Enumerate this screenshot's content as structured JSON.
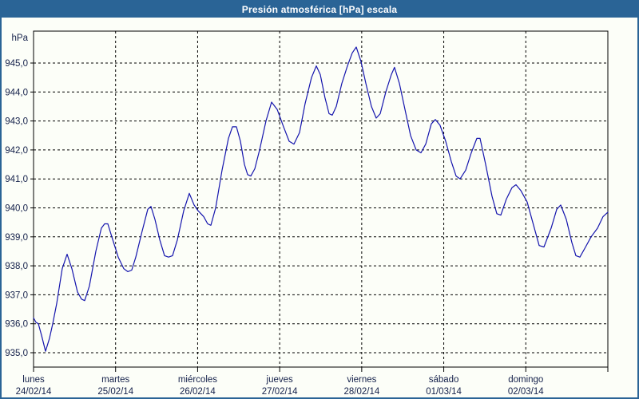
{
  "window": {
    "title": "Presión atmosférica [hPa] escala"
  },
  "colors": {
    "accent": "#2a6496",
    "title_text": "#ffffff",
    "background": "#fcfef8",
    "grid": "#000000",
    "axis": "#000000",
    "label_text": "#14204a",
    "line": "#1515ad"
  },
  "chart_data": {
    "type": "line",
    "title": "Presión atmosférica [hPa] escala",
    "unit_label": "hPa",
    "xlabel": "",
    "ylabel": "hPa",
    "ylim": [
      934.5,
      946.1
    ],
    "xlim_days": [
      0,
      7
    ],
    "grid": "dashed",
    "legend_position": "none",
    "y_ticks": [
      {
        "v": 945,
        "label": "945,0"
      },
      {
        "v": 944,
        "label": "944,0"
      },
      {
        "v": 943,
        "label": "943,0"
      },
      {
        "v": 942,
        "label": "942,0"
      },
      {
        "v": 941,
        "label": "941,0"
      },
      {
        "v": 940,
        "label": "940,0"
      },
      {
        "v": 939,
        "label": "939,0"
      },
      {
        "v": 938,
        "label": "938,0"
      },
      {
        "v": 937,
        "label": "937,0"
      },
      {
        "v": 936,
        "label": "936,0"
      },
      {
        "v": 935,
        "label": "935,0"
      }
    ],
    "x_ticks": [
      {
        "day": "lunes",
        "date": "24/02/14"
      },
      {
        "day": "martes",
        "date": "25/02/14"
      },
      {
        "day": "miércoles",
        "date": "26/02/14"
      },
      {
        "day": "jueves",
        "date": "27/02/14"
      },
      {
        "day": "viernes",
        "date": "28/02/14"
      },
      {
        "day": "sábado",
        "date": "01/03/14"
      },
      {
        "day": "domingo",
        "date": "02/03/14"
      }
    ],
    "series": [
      {
        "name": "Presión atmosférica",
        "color": "#1515ad",
        "points": [
          [
            0,
            936.2
          ],
          [
            0.029,
            936.05
          ],
          [
            0.058,
            936.0
          ],
          [
            0.097,
            935.6
          ],
          [
            0.146,
            935.05
          ],
          [
            0.195,
            935.5
          ],
          [
            0.234,
            936.0
          ],
          [
            0.282,
            936.7
          ],
          [
            0.35,
            937.9
          ],
          [
            0.409,
            938.4
          ],
          [
            0.467,
            937.9
          ],
          [
            0.535,
            937.1
          ],
          [
            0.584,
            936.85
          ],
          [
            0.623,
            936.8
          ],
          [
            0.681,
            937.3
          ],
          [
            0.759,
            938.5
          ],
          [
            0.827,
            939.3
          ],
          [
            0.866,
            939.45
          ],
          [
            0.905,
            939.45
          ],
          [
            0.954,
            939.0
          ],
          [
            1.032,
            938.3
          ],
          [
            1.1,
            937.9
          ],
          [
            1.149,
            937.8
          ],
          [
            1.197,
            937.85
          ],
          [
            1.246,
            938.3
          ],
          [
            1.324,
            939.2
          ],
          [
            1.392,
            939.95
          ],
          [
            1.431,
            940.05
          ],
          [
            1.48,
            939.6
          ],
          [
            1.538,
            938.9
          ],
          [
            1.597,
            938.35
          ],
          [
            1.645,
            938.3
          ],
          [
            1.694,
            938.35
          ],
          [
            1.753,
            938.9
          ],
          [
            1.83,
            939.9
          ],
          [
            1.898,
            940.5
          ],
          [
            1.957,
            940.1
          ],
          [
            2.006,
            939.9
          ],
          [
            2.074,
            939.7
          ],
          [
            2.122,
            939.45
          ],
          [
            2.161,
            939.4
          ],
          [
            2.22,
            940.0
          ],
          [
            2.298,
            941.3
          ],
          [
            2.376,
            942.4
          ],
          [
            2.424,
            942.8
          ],
          [
            2.473,
            942.8
          ],
          [
            2.522,
            942.3
          ],
          [
            2.57,
            941.5
          ],
          [
            2.609,
            941.15
          ],
          [
            2.648,
            941.1
          ],
          [
            2.697,
            941.35
          ],
          [
            2.755,
            942.0
          ],
          [
            2.833,
            943.0
          ],
          [
            2.901,
            943.65
          ],
          [
            2.969,
            943.4
          ],
          [
            3.047,
            942.8
          ],
          [
            3.115,
            942.3
          ],
          [
            3.174,
            942.2
          ],
          [
            3.242,
            942.6
          ],
          [
            3.31,
            943.6
          ],
          [
            3.388,
            944.5
          ],
          [
            3.446,
            944.9
          ],
          [
            3.495,
            944.6
          ],
          [
            3.553,
            943.8
          ],
          [
            3.602,
            943.25
          ],
          [
            3.641,
            943.2
          ],
          [
            3.69,
            943.5
          ],
          [
            3.758,
            944.3
          ],
          [
            3.826,
            944.9
          ],
          [
            3.885,
            945.35
          ],
          [
            3.933,
            945.55
          ],
          [
            3.992,
            945.05
          ],
          [
            4.05,
            944.3
          ],
          [
            4.118,
            943.5
          ],
          [
            4.177,
            943.1
          ],
          [
            4.225,
            943.25
          ],
          [
            4.293,
            944.0
          ],
          [
            4.361,
            944.6
          ],
          [
            4.4,
            944.85
          ],
          [
            4.459,
            944.3
          ],
          [
            4.527,
            943.4
          ],
          [
            4.595,
            942.5
          ],
          [
            4.663,
            942.0
          ],
          [
            4.722,
            941.9
          ],
          [
            4.78,
            942.2
          ],
          [
            4.848,
            942.9
          ],
          [
            4.897,
            943.05
          ],
          [
            4.955,
            942.85
          ],
          [
            5.024,
            942.3
          ],
          [
            5.092,
            941.6
          ],
          [
            5.15,
            941.1
          ],
          [
            5.199,
            941.0
          ],
          [
            5.267,
            941.3
          ],
          [
            5.335,
            941.9
          ],
          [
            5.403,
            942.4
          ],
          [
            5.442,
            942.4
          ],
          [
            5.51,
            941.5
          ],
          [
            5.588,
            940.4
          ],
          [
            5.647,
            939.8
          ],
          [
            5.695,
            939.75
          ],
          [
            5.763,
            940.3
          ],
          [
            5.832,
            940.7
          ],
          [
            5.88,
            940.8
          ],
          [
            5.939,
            940.6
          ],
          [
            6.017,
            940.2
          ],
          [
            6.095,
            939.4
          ],
          [
            6.163,
            938.7
          ],
          [
            6.221,
            938.65
          ],
          [
            6.309,
            939.3
          ],
          [
            6.377,
            939.95
          ],
          [
            6.426,
            940.1
          ],
          [
            6.494,
            939.6
          ],
          [
            6.562,
            938.8
          ],
          [
            6.611,
            938.35
          ],
          [
            6.659,
            938.3
          ],
          [
            6.728,
            938.65
          ],
          [
            6.796,
            939.0
          ],
          [
            6.874,
            939.3
          ],
          [
            6.942,
            939.7
          ],
          [
            7,
            939.85
          ]
        ]
      }
    ]
  }
}
